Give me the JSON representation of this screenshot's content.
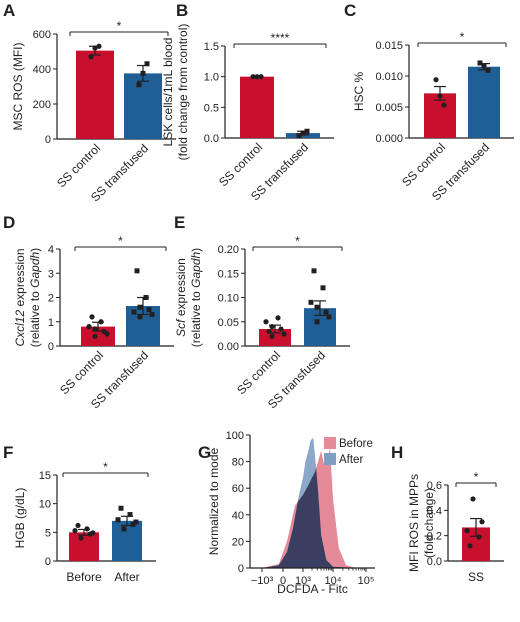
{
  "colors": {
    "control": "#c8102e",
    "transfused": "#1f5f96",
    "text": "#231f20",
    "histogram_before": "#e58a98",
    "histogram_after": "#7f9ec2",
    "histogram_overlap": "#3a3f62"
  },
  "chart_data": [
    {
      "panel": "A",
      "type": "bar",
      "categories": [
        "SS control",
        "SS transfused"
      ],
      "values": [
        505,
        375
      ],
      "errors": [
        25,
        45
      ],
      "points": [
        [
          470,
          520,
          530
        ],
        [
          310,
          375,
          430
        ]
      ],
      "ylabel": "MSC ROS (MFI)",
      "ylim": [
        0,
        600
      ],
      "ticks": [
        "0",
        "200",
        "400",
        "600"
      ],
      "significance": "*"
    },
    {
      "panel": "B",
      "type": "bar",
      "categories": [
        "SS control",
        "SS transfused"
      ],
      "values": [
        1.0,
        0.08
      ],
      "errors": [
        0.005,
        0.03
      ],
      "points": [
        [
          1.0,
          1.0,
          1.0
        ],
        [
          0.04,
          0.08,
          0.11
        ]
      ],
      "ylabel": [
        "LSK cells/1mL blood",
        "(fold change from control)"
      ],
      "ylim": [
        0,
        1.5
      ],
      "ticks": [
        "0.0",
        "0.5",
        "1.0",
        "1.5"
      ],
      "significance": "****"
    },
    {
      "panel": "C",
      "type": "bar",
      "categories": [
        "SS control",
        "SS transfused"
      ],
      "values": [
        0.0072,
        0.0115
      ],
      "errors": [
        0.0011,
        0.0005
      ],
      "points": [
        [
          0.0094,
          0.0068,
          0.0053
        ],
        [
          0.0121,
          0.0116,
          0.0109
        ]
      ],
      "ylabel": "HSC %",
      "ylim": [
        0,
        0.015
      ],
      "ticks": [
        "0.000",
        "0.005",
        "0.010",
        "0.015"
      ],
      "significance": "*"
    },
    {
      "panel": "D",
      "type": "bar",
      "categories": [
        "SS control",
        "SS transfused"
      ],
      "values": [
        0.8,
        1.65
      ],
      "errors": [
        0.18,
        0.35
      ],
      "points": [
        [
          0.4,
          0.6,
          0.8,
          1.0,
          1.2,
          0.5,
          0.7
        ],
        [
          1.2,
          1.5,
          1.4,
          2.0,
          3.1,
          1.3,
          1.6
        ]
      ],
      "ylabel": [
        "Cxcl12 expression",
        "(relative to Gapdh)"
      ],
      "ylim": [
        0,
        4
      ],
      "ticks": [
        "0",
        "1",
        "2",
        "3",
        "4"
      ],
      "significance": "*"
    },
    {
      "panel": "E",
      "type": "bar",
      "categories": [
        "SS control",
        "SS transfused"
      ],
      "values": [
        0.035,
        0.078
      ],
      "errors": [
        0.008,
        0.015
      ],
      "points": [
        [
          0.02,
          0.035,
          0.05,
          0.058,
          0.03,
          0.025,
          0.04
        ],
        [
          0.05,
          0.07,
          0.09,
          0.12,
          0.155,
          0.06,
          0.08
        ]
      ],
      "ylabel": [
        "Scf expression",
        "(relative to Gapdh)"
      ],
      "ylim": [
        0,
        0.2
      ],
      "ticks": [
        "0.00",
        "0.05",
        "0.10",
        "0.15",
        "0.20"
      ],
      "significance": "*"
    },
    {
      "panel": "F",
      "type": "bar",
      "categories": [
        "Before",
        "After"
      ],
      "values": [
        5.0,
        7.0
      ],
      "errors": [
        0.5,
        0.8
      ],
      "points": [
        [
          4.0,
          4.7,
          5.3,
          5.6,
          6.2,
          4.9
        ],
        [
          5.6,
          6.4,
          7.2,
          8.1,
          9.2,
          6.8
        ]
      ],
      "ylabel": "HGB (g/dL)",
      "ylim": [
        0,
        15
      ],
      "ticks": [
        "0",
        "5",
        "10",
        "15"
      ],
      "significance": "*"
    },
    {
      "panel": "G",
      "type": "area",
      "xlabel": "DCFDA - Fitc",
      "ylabel": "Normalized to mode",
      "xticks": [
        "−10³",
        "0",
        "10³",
        "10⁴",
        "10⁵"
      ],
      "yticks": [
        "0",
        "20",
        "40",
        "60",
        "80",
        "100"
      ],
      "ylim": [
        0,
        100
      ],
      "legend": [
        "Before",
        "After"
      ],
      "series": [
        {
          "name": "Before",
          "x": [
            -1000,
            -200,
            200,
            600,
            1000,
            1500,
            2000,
            2500,
            3000,
            4000,
            5000,
            6500,
            8000,
            10000,
            15000,
            25000,
            50000
          ],
          "y": [
            0,
            3,
            20,
            47,
            55,
            62,
            68,
            72,
            78,
            88,
            78,
            82,
            90,
            52,
            15,
            2,
            0
          ]
        },
        {
          "name": "After",
          "x": [
            -1000,
            -200,
            200,
            500,
            800,
            1000,
            1200,
            1500,
            1800,
            2200,
            2500,
            3000,
            3500,
            4000,
            6000,
            10000,
            50000
          ],
          "y": [
            0,
            2,
            12,
            30,
            55,
            68,
            80,
            88,
            96,
            98,
            85,
            65,
            45,
            25,
            6,
            1,
            0
          ]
        }
      ]
    },
    {
      "panel": "H",
      "type": "bar",
      "categories": [
        "SS"
      ],
      "values": [
        0.265
      ],
      "errors": [
        0.07
      ],
      "points": [
        [
          0.49,
          0.31,
          0.24,
          0.19,
          0.12
        ]
      ],
      "ylabel": [
        "MFI ROS in MPPs",
        "(fold change)"
      ],
      "ylim": [
        0,
        0.6
      ],
      "ticks": [
        "0.0",
        "0.2",
        "0.4",
        "0.6"
      ],
      "significance": "*"
    }
  ]
}
